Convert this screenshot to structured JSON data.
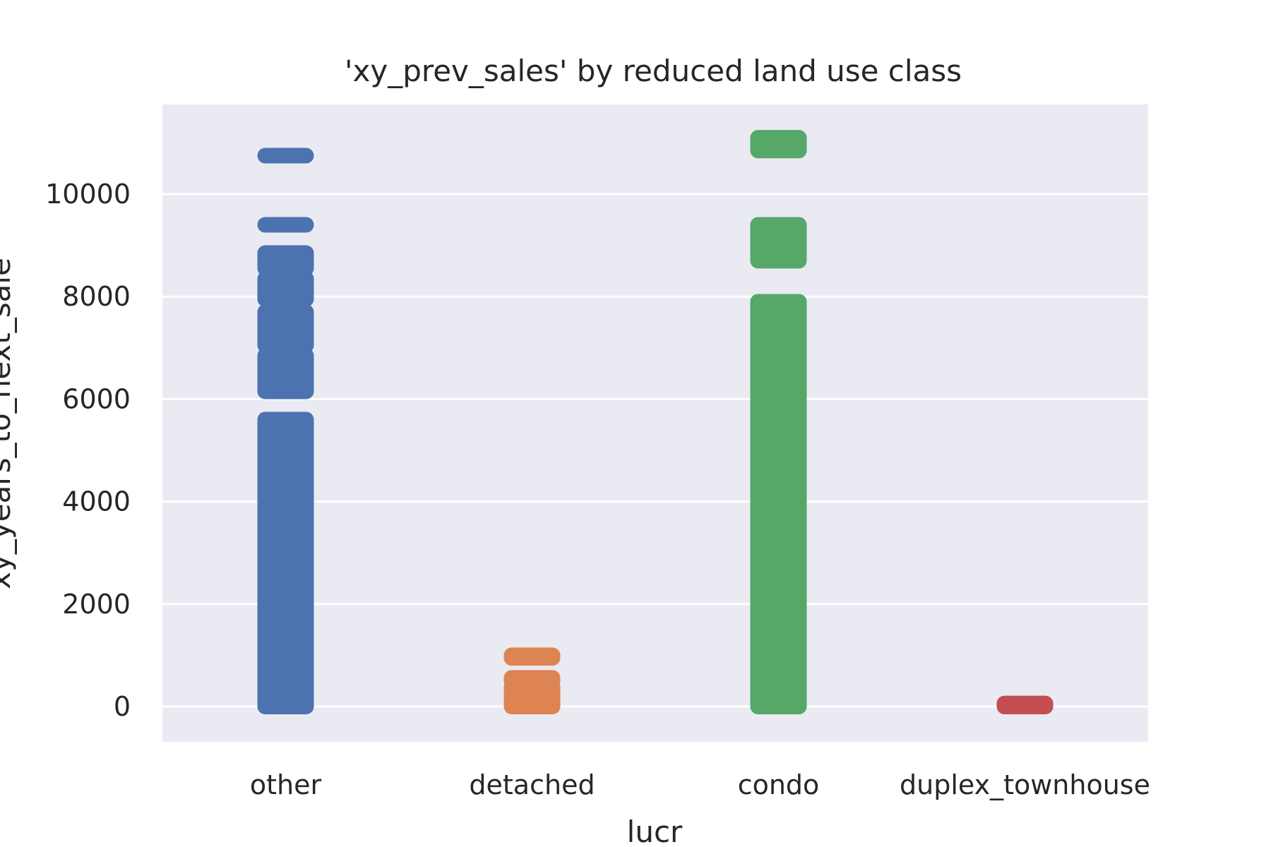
{
  "chart_data": {
    "type": "strip",
    "title": "'xy_prev_sales' by reduced land use class",
    "xlabel": "lucr",
    "ylabel": "xy_years_to_next_sale",
    "categories": [
      "other",
      "detached",
      "condo",
      "duplex_townhouse"
    ],
    "ylim": [
      -700,
      11800
    ],
    "yticks": [
      0,
      2000,
      4000,
      6000,
      8000,
      10000
    ],
    "grid": true,
    "background": "#eaeaf2",
    "grid_color": "#ffffff",
    "colors": [
      "#4c72b0",
      "#dd8452",
      "#55a868",
      "#c44e52"
    ],
    "series": [
      {
        "category": "other",
        "bands": [
          [
            0,
            3500
          ],
          [
            3500,
            5600
          ],
          [
            6150,
            6850
          ],
          [
            7050,
            7700
          ],
          [
            7950,
            8350
          ],
          [
            8550,
            8850
          ],
          [
            9400,
            9400
          ],
          [
            10750,
            10750
          ]
        ]
      },
      {
        "category": "detached",
        "bands": [
          [
            0,
            250
          ],
          [
            300,
            380
          ],
          [
            500,
            560
          ],
          [
            950,
            1000
          ]
        ]
      },
      {
        "category": "condo",
        "bands": [
          [
            0,
            7900
          ],
          [
            8700,
            9400
          ],
          [
            10850,
            11100
          ]
        ]
      },
      {
        "category": "duplex_townhouse",
        "bands": [
          [
            0,
            60
          ]
        ]
      }
    ]
  }
}
